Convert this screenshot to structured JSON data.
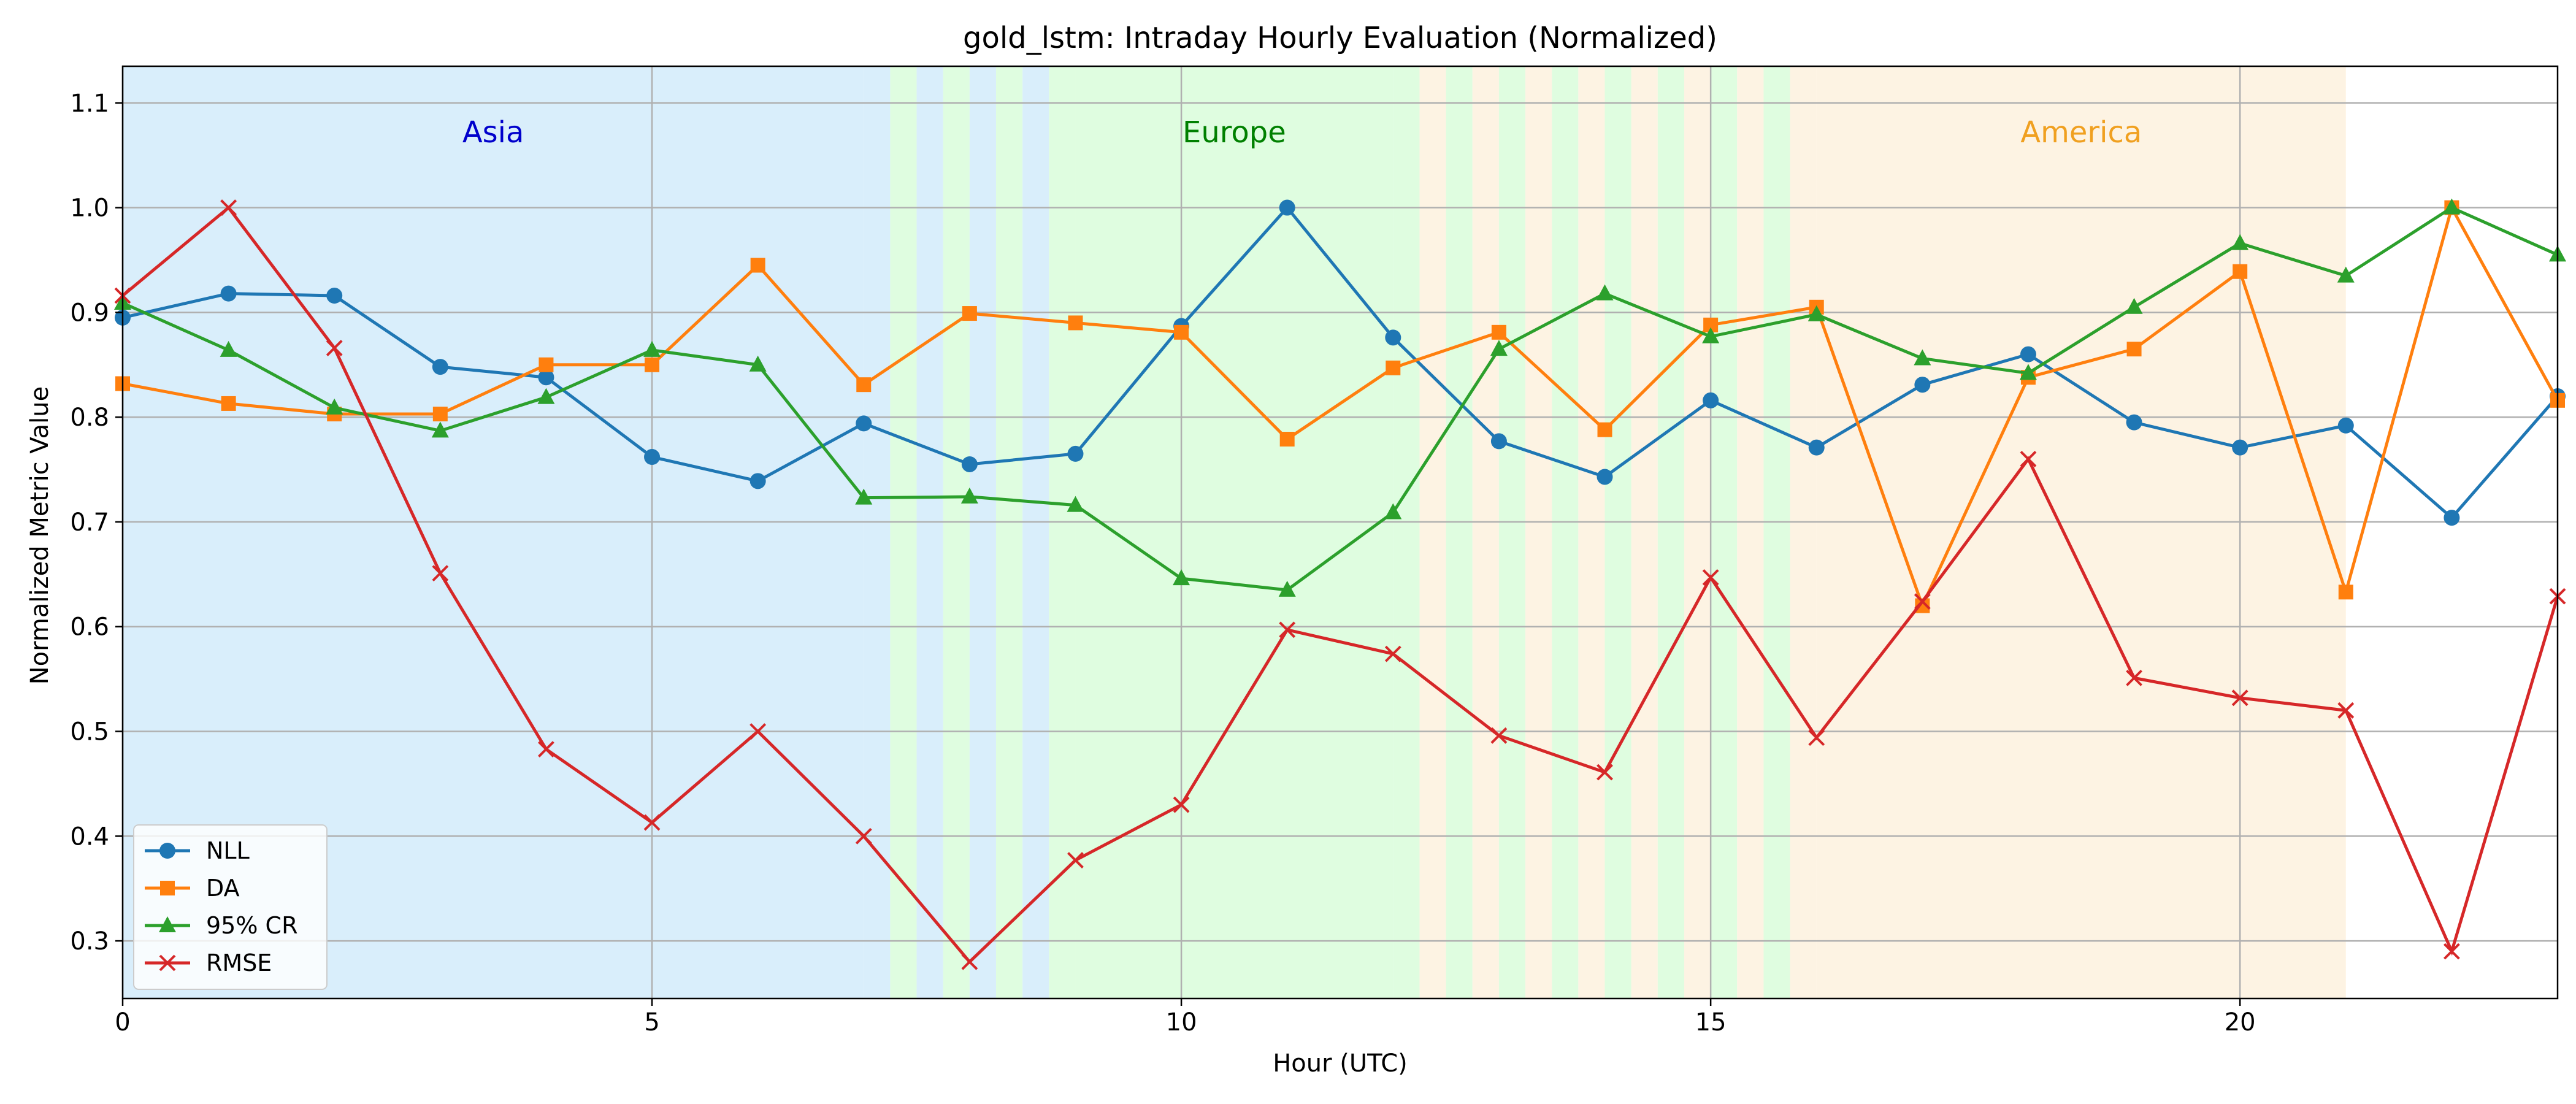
{
  "chart_data": {
    "type": "line",
    "title": "gold_lstm: Intraday Hourly Evaluation (Normalized)",
    "xlabel": "Hour (UTC)",
    "ylabel": "Normalized Metric Value",
    "xlim": [
      0,
      23
    ],
    "ylim": [
      0.245,
      1.135
    ],
    "x_ticks": [
      0,
      5,
      10,
      15,
      20
    ],
    "y_ticks": [
      0.3,
      0.4,
      0.5,
      0.6,
      0.7,
      0.8,
      0.9,
      1.0,
      1.1
    ],
    "grid": true,
    "legend_position": "lower-left",
    "x": [
      0,
      1,
      2,
      3,
      4,
      5,
      6,
      7,
      8,
      9,
      10,
      11,
      12,
      13,
      14,
      15,
      16,
      17,
      18,
      19,
      20,
      21,
      22,
      23
    ],
    "series": [
      {
        "name": "NLL",
        "color": "#1f77b4",
        "marker": "circle",
        "values": [
          0.895,
          0.918,
          0.916,
          0.848,
          0.838,
          0.762,
          0.739,
          0.794,
          0.755,
          0.765,
          0.887,
          1.0,
          0.876,
          0.777,
          0.743,
          0.816,
          0.771,
          0.831,
          0.86,
          0.795,
          0.771,
          0.792,
          0.704,
          0.82
        ]
      },
      {
        "name": "DA",
        "color": "#ff7f0e",
        "marker": "square",
        "values": [
          0.832,
          0.813,
          0.803,
          0.803,
          0.85,
          0.85,
          0.945,
          0.831,
          0.899,
          0.89,
          0.881,
          0.779,
          0.847,
          0.881,
          0.788,
          0.888,
          0.905,
          0.62,
          0.838,
          0.865,
          0.939,
          0.633,
          1.0,
          0.816
        ]
      },
      {
        "name": "95% CR",
        "color": "#2ca02c",
        "marker": "triangle",
        "values": [
          0.909,
          0.864,
          0.809,
          0.787,
          0.819,
          0.864,
          0.85,
          0.723,
          0.724,
          0.716,
          0.646,
          0.635,
          0.709,
          0.865,
          0.918,
          0.877,
          0.898,
          0.856,
          0.842,
          0.905,
          0.966,
          0.935,
          1.0,
          0.955
        ]
      },
      {
        "name": "RMSE",
        "color": "#d62728",
        "marker": "x",
        "values": [
          0.916,
          1.0,
          0.866,
          0.651,
          0.483,
          0.413,
          0.5,
          0.4,
          0.28,
          0.377,
          0.43,
          0.597,
          0.574,
          0.496,
          0.461,
          0.647,
          0.494,
          0.624,
          0.76,
          0.551,
          0.532,
          0.52,
          0.29,
          0.629
        ]
      }
    ],
    "sessions": [
      {
        "name": "Asia",
        "color": "#0000cc",
        "fill": "#d9eefb"
      },
      {
        "name": "Europe",
        "color": "#008000",
        "fill": "#dffde0"
      },
      {
        "name": "America",
        "color": "#f0a020",
        "fill": "#fdf3e3"
      }
    ]
  }
}
